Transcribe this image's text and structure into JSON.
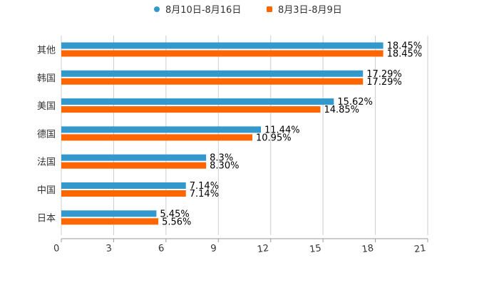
{
  "chart_data": {
    "type": "bar",
    "orientation": "horizontal",
    "categories": [
      "其他",
      "韩国",
      "美国",
      "德国",
      "法国",
      "中国",
      "日本"
    ],
    "series": [
      {
        "name": "8月10日-8月16日",
        "color": "#3399cc",
        "values": [
          18.45,
          17.29,
          15.62,
          11.44,
          8.3,
          7.14,
          5.45
        ],
        "labels": [
          "18.45%",
          "17.29%",
          "15.62%",
          "11.44%",
          "8.3%",
          "7.14%",
          "5.45%"
        ]
      },
      {
        "name": "8月3日-8月9日",
        "color": "#ff6600",
        "values": [
          18.45,
          17.29,
          14.85,
          10.95,
          8.3,
          7.14,
          5.56
        ],
        "labels": [
          "18.45%",
          "17.29%",
          "14.85%",
          "10.95%",
          "8.30%",
          "7.14%",
          "5.56%"
        ]
      }
    ],
    "xticks": [
      "0",
      "3",
      "6",
      "9",
      "12",
      "15",
      "18",
      "21"
    ],
    "xlim": [
      0,
      21
    ],
    "grid": true,
    "legend": "top-center",
    "title": "",
    "xlabel": "",
    "ylabel": ""
  }
}
